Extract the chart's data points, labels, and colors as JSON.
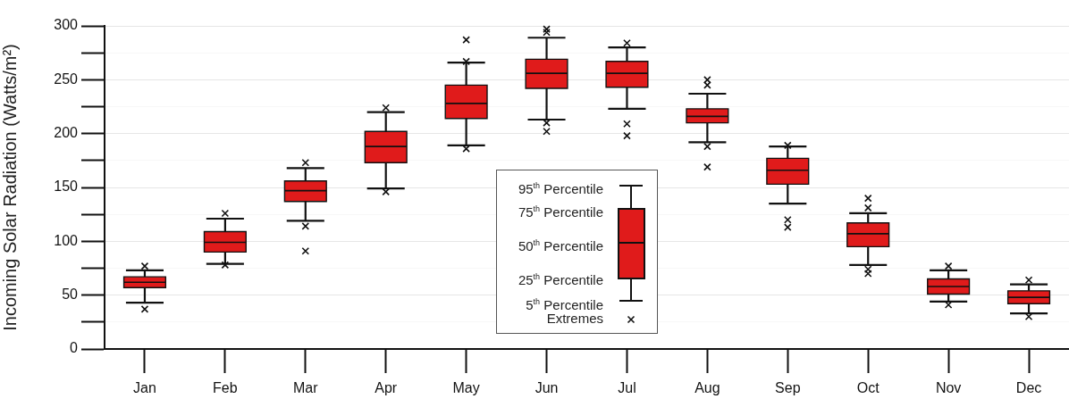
{
  "chart_data": {
    "type": "box",
    "ylabel": "Incoming Solar Radiation (Watts/m²)",
    "categories": [
      "Jan",
      "Feb",
      "Mar",
      "Apr",
      "May",
      "Jun",
      "Jul",
      "Aug",
      "Sep",
      "Oct",
      "Nov",
      "Dec"
    ],
    "color": "#e01b1b",
    "boxes": [
      {
        "low": 43,
        "q1": 57,
        "median": 62,
        "q3": 67,
        "high": 73,
        "outliers": [
          77,
          37
        ]
      },
      {
        "low": 79,
        "q1": 90,
        "median": 99,
        "q3": 109,
        "high": 121,
        "outliers": [
          126,
          78
        ]
      },
      {
        "low": 119,
        "q1": 137,
        "median": 147,
        "q3": 156,
        "high": 168,
        "outliers": [
          173,
          114,
          91
        ]
      },
      {
        "low": 149,
        "q1": 173,
        "median": 188,
        "q3": 202,
        "high": 220,
        "outliers": [
          224,
          146
        ]
      },
      {
        "low": 189,
        "q1": 214,
        "median": 228,
        "q3": 245,
        "high": 266,
        "outliers": [
          287,
          267,
          186
        ]
      },
      {
        "low": 213,
        "q1": 242,
        "median": 256,
        "q3": 269,
        "high": 289,
        "outliers": [
          297,
          294,
          210,
          202
        ]
      },
      {
        "low": 223,
        "q1": 243,
        "median": 256,
        "q3": 267,
        "high": 280,
        "outliers": [
          284,
          209,
          198
        ]
      },
      {
        "low": 192,
        "q1": 210,
        "median": 216,
        "q3": 223,
        "high": 237,
        "outliers": [
          250,
          245,
          188,
          169
        ]
      },
      {
        "low": 135,
        "q1": 153,
        "median": 166,
        "q3": 177,
        "high": 188,
        "outliers": [
          189,
          120,
          113
        ]
      },
      {
        "low": 78,
        "q1": 95,
        "median": 107,
        "q3": 117,
        "high": 126,
        "outliers": [
          140,
          131,
          74,
          70
        ]
      },
      {
        "low": 44,
        "q1": 51,
        "median": 58,
        "q3": 65,
        "high": 73,
        "outliers": [
          77,
          41
        ]
      },
      {
        "low": 33,
        "q1": 42,
        "median": 48,
        "q3": 54,
        "high": 60,
        "outliers": [
          64,
          30
        ]
      }
    ],
    "ylim": [
      0,
      300
    ],
    "yticks": [
      0,
      {
        "value": 25,
        "label": null
      },
      50,
      {
        "value": 75,
        "label": null
      },
      100,
      {
        "value": 125,
        "label": null
      },
      150,
      {
        "value": 175,
        "label": null
      },
      200,
      {
        "value": 225,
        "label": null
      },
      250,
      {
        "value": 275,
        "label": null
      },
      300
    ],
    "grid": "y",
    "annotations": [
      "95$^{th}$ Percentile",
      "75$^{th}$ Percentile",
      "50$^{th}$ Percentile",
      "25$^{th}$ Percentile",
      "5$^{th}$ Percentile",
      "Extremes"
    ]
  }
}
